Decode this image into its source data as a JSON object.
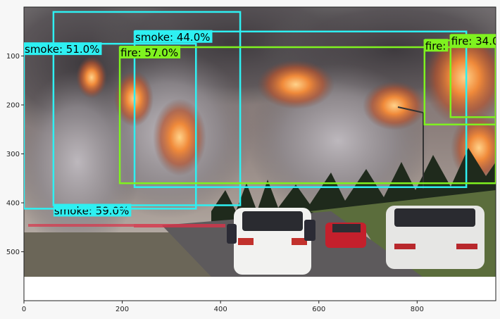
{
  "figure": {
    "image_width_units": 960,
    "image_height_units": 600,
    "photo_bottom_units": 550,
    "x_ticks": [
      0,
      200,
      400,
      600,
      800
    ],
    "y_ticks": [
      100,
      200,
      300,
      400,
      500
    ]
  },
  "colors": {
    "smoke": "#2ef0f2",
    "fire": "#7ff21f",
    "frame": "#222222"
  },
  "detections": [
    {
      "id": "smoke-59",
      "cls": "smoke",
      "label": "smoke: 59.0%",
      "x1": 60,
      "y1": 10,
      "x2": 440,
      "y2": 405,
      "anchor": "bottom"
    },
    {
      "id": "smoke-44",
      "cls": "smoke",
      "label": "smoke: 44.0%",
      "x1": 225,
      "y1": 50,
      "x2": 900,
      "y2": 368,
      "anchor": "top"
    },
    {
      "id": "smoke-51",
      "cls": "smoke",
      "label": "smoke: 51.0%",
      "x1": 0,
      "y1": 75,
      "x2": 350,
      "y2": 412,
      "anchor": "top"
    },
    {
      "id": "fire-57",
      "cls": "fire",
      "label": "fire: 57.0%",
      "x1": 195,
      "y1": 82,
      "x2": 960,
      "y2": 360,
      "anchor": "top"
    },
    {
      "id": "fire-a",
      "cls": "fire",
      "label": "fire:",
      "x1": 815,
      "y1": 68,
      "x2": 960,
      "y2": 240,
      "anchor": "top"
    },
    {
      "id": "fire-34",
      "cls": "fire",
      "label": "fire: 34.0",
      "x1": 868,
      "y1": 58,
      "x2": 960,
      "y2": 225,
      "anchor": "top"
    }
  ]
}
